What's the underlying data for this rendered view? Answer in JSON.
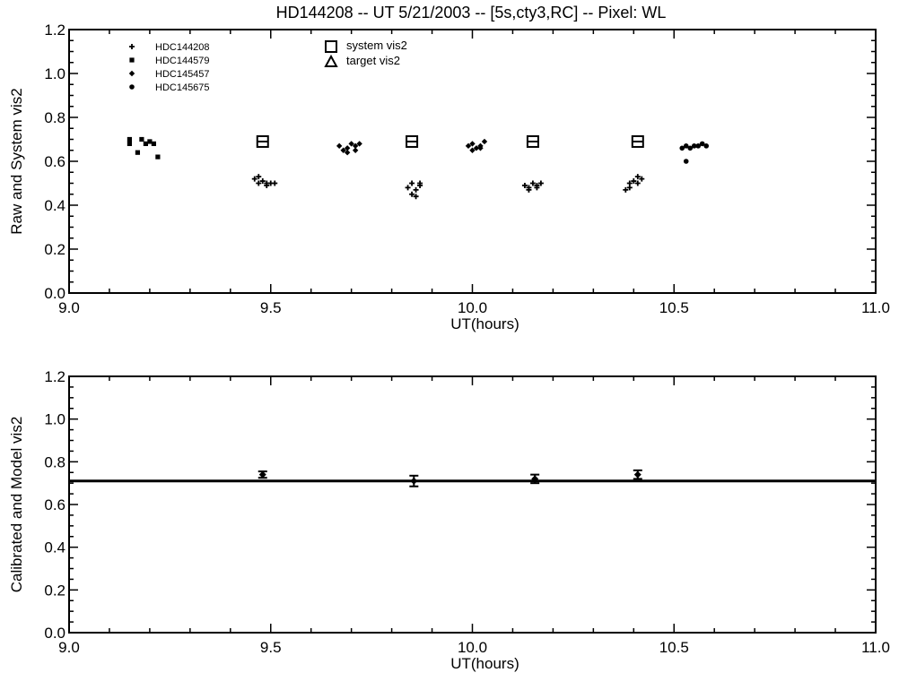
{
  "title": "HD144208 -- UT 5/21/2003 -- [5s,cty3,RC] -- Pixel: WL",
  "chart_data": [
    {
      "type": "scatter",
      "xlabel": "UT(hours)",
      "ylabel": "Raw and System vis2",
      "xlim": [
        9.0,
        11.0
      ],
      "ylim": [
        0.0,
        1.2
      ],
      "x_ticks": [
        "9.0",
        "9.5",
        "10.0",
        "10.5",
        "11.0"
      ],
      "y_ticks": [
        "0.0",
        "0.2",
        "0.4",
        "0.6",
        "0.8",
        "1.0",
        "1.2"
      ],
      "legend_placement": "top-left",
      "legend": [
        {
          "label": "HDC144208",
          "marker": "plus"
        },
        {
          "label": "HDC144579",
          "marker": "square-dot"
        },
        {
          "label": "HDC145457",
          "marker": "diamond-dot"
        },
        {
          "label": "HDC145675",
          "marker": "circle-dot"
        },
        {
          "label": "system vis2",
          "marker": "square"
        },
        {
          "label": "target vis2",
          "marker": "triangle"
        }
      ],
      "system_vis2": [
        {
          "x": 9.48,
          "y": 0.69
        },
        {
          "x": 9.85,
          "y": 0.69
        },
        {
          "x": 10.15,
          "y": 0.69
        },
        {
          "x": 10.41,
          "y": 0.69
        }
      ],
      "series": [
        {
          "name": "HDC144579",
          "x": [
            9.15,
            9.15,
            9.18,
            9.19,
            9.2,
            9.21,
            9.17,
            9.22
          ],
          "y": [
            0.7,
            0.68,
            0.7,
            0.68,
            0.69,
            0.68,
            0.64,
            0.62
          ]
        },
        {
          "name": "HDC144208",
          "x": [
            9.46,
            9.47,
            9.48,
            9.49,
            9.5,
            9.47,
            9.49,
            9.51,
            9.85,
            9.84,
            9.86,
            9.87,
            9.85,
            9.86,
            9.87,
            10.13,
            10.14,
            10.15,
            10.16,
            10.17,
            10.14,
            10.16,
            10.38,
            10.39,
            10.4,
            10.41,
            10.42,
            10.39,
            10.41
          ],
          "y": [
            0.52,
            0.5,
            0.51,
            0.5,
            0.5,
            0.53,
            0.49,
            0.5,
            0.5,
            0.48,
            0.47,
            0.49,
            0.45,
            0.44,
            0.5,
            0.49,
            0.48,
            0.5,
            0.49,
            0.5,
            0.47,
            0.48,
            0.47,
            0.5,
            0.51,
            0.5,
            0.52,
            0.48,
            0.53
          ]
        },
        {
          "name": "HDC145457",
          "x": [
            9.67,
            9.68,
            9.69,
            9.7,
            9.71,
            9.72,
            9.69,
            9.71,
            9.99,
            10.0,
            10.01,
            10.02,
            10.03,
            10.0,
            10.02
          ],
          "y": [
            0.67,
            0.65,
            0.66,
            0.68,
            0.67,
            0.68,
            0.64,
            0.65,
            0.67,
            0.68,
            0.66,
            0.67,
            0.69,
            0.65,
            0.66
          ]
        },
        {
          "name": "HDC145675",
          "x": [
            10.52,
            10.53,
            10.54,
            10.55,
            10.56,
            10.57,
            10.58,
            10.53
          ],
          "y": [
            0.66,
            0.67,
            0.66,
            0.67,
            0.67,
            0.68,
            0.67,
            0.6
          ]
        }
      ]
    },
    {
      "type": "scatter",
      "xlabel": "UT(hours)",
      "ylabel": "Calibrated and Model vis2",
      "xlim": [
        9.0,
        11.0
      ],
      "ylim": [
        0.0,
        1.2
      ],
      "x_ticks": [
        "9.0",
        "9.5",
        "10.0",
        "10.5",
        "11.0"
      ],
      "y_ticks": [
        "0.0",
        "0.2",
        "0.4",
        "0.6",
        "0.8",
        "1.0",
        "1.2"
      ],
      "model_vis2": 0.71,
      "calibrated": [
        {
          "x": 9.48,
          "y": 0.74,
          "err": 0.015
        },
        {
          "x": 9.855,
          "y": 0.71,
          "err": 0.025
        },
        {
          "x": 10.155,
          "y": 0.72,
          "err": 0.02
        },
        {
          "x": 10.41,
          "y": 0.74,
          "err": 0.02
        }
      ]
    }
  ]
}
